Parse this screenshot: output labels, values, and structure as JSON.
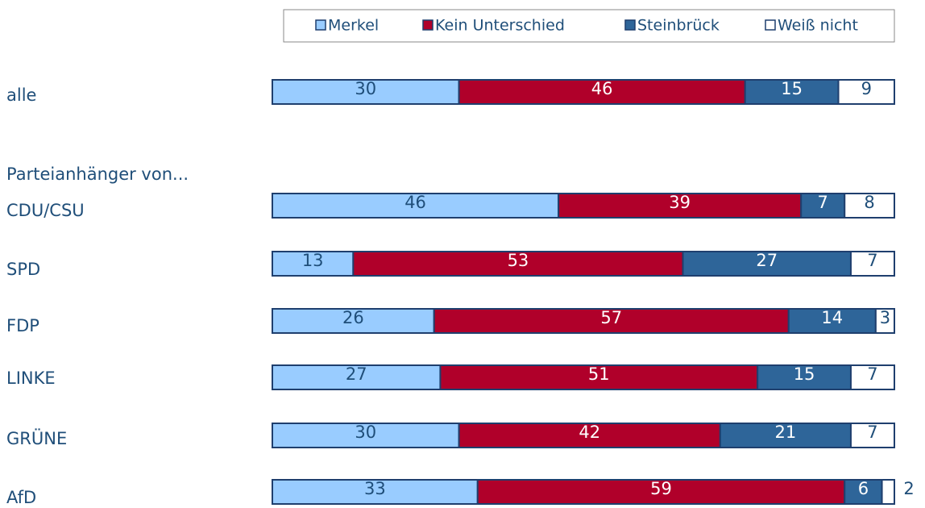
{
  "chart_data": {
    "type": "stacked-bar-horizontal",
    "annotations": [
      "Parteianhänger von..."
    ],
    "categories": [
      "alle",
      "CDU/CSU",
      "SPD",
      "FDP",
      "LINKE",
      "GRÜNE",
      "AfD"
    ],
    "series": [
      {
        "name": "Merkel",
        "color": "#99ccff",
        "values": [
          30,
          46,
          13,
          26,
          27,
          30,
          33
        ]
      },
      {
        "name": "Kein Unterschied",
        "color": "#b0002a",
        "values": [
          46,
          39,
          53,
          57,
          51,
          42,
          59
        ]
      },
      {
        "name": "Steinbrück",
        "color": "#2e6599",
        "values": [
          15,
          7,
          27,
          14,
          15,
          21,
          6
        ]
      },
      {
        "name": "Weiß nicht",
        "color": "#ffffff",
        "values": [
          9,
          8,
          7,
          3,
          7,
          7,
          2
        ]
      }
    ],
    "xlim": [
      0,
      100
    ]
  }
}
